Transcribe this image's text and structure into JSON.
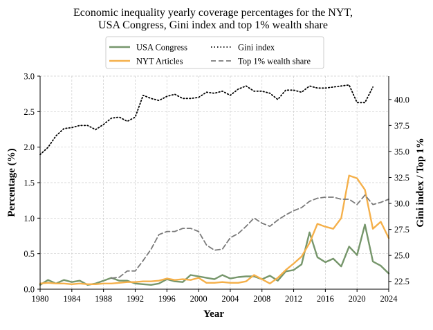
{
  "chart_data": {
    "type": "line",
    "title_lines": [
      "Economic inequality yearly coverage percentages for the NYT,",
      "USA Congress, Gini index and top 1% wealth share"
    ],
    "xlabel": "Year",
    "ylabel_left": "Percentage (%)",
    "ylabel_right": "Gini index / Top 1%",
    "xlim": [
      1980,
      2024
    ],
    "ylim_left": [
      0,
      3.0
    ],
    "ylim_right": [
      21.75,
      42.25
    ],
    "x_ticks": [
      1980,
      1984,
      1988,
      1992,
      1996,
      2000,
      2004,
      2008,
      2012,
      2016,
      2020,
      2024
    ],
    "y_left_ticks": [
      "0.0",
      "0.5",
      "1.0",
      "1.5",
      "2.0",
      "2.5",
      "3.0"
    ],
    "y_right_ticks": [
      "22.5",
      "25.0",
      "27.5",
      "30.0",
      "32.5",
      "35.0",
      "37.5",
      "40.0"
    ],
    "grid": true,
    "legend_position": "top-center",
    "legend_entries": [
      {
        "label": "USA Congress",
        "series": "congress"
      },
      {
        "label": "NYT Articles",
        "series": "nyt"
      },
      {
        "label": "Gini index",
        "series": "gini"
      },
      {
        "label": "Top 1% wealth share",
        "series": "top1"
      }
    ],
    "series": [
      {
        "id": "congress",
        "name": "USA Congress",
        "axis": "left",
        "color": "#76966b",
        "style": "solid",
        "width": 2.4,
        "x": [
          1980,
          1981,
          1982,
          1983,
          1984,
          1985,
          1986,
          1987,
          1988,
          1989,
          1990,
          1991,
          1992,
          1993,
          1994,
          1995,
          1996,
          1997,
          1998,
          1999,
          2000,
          2001,
          2002,
          2003,
          2004,
          2005,
          2006,
          2007,
          2008,
          2009,
          2010,
          2011,
          2012,
          2013,
          2014,
          2015,
          2016,
          2017,
          2018,
          2019,
          2020,
          2021,
          2022,
          2023,
          2024
        ],
        "y": [
          0.06,
          0.13,
          0.08,
          0.13,
          0.1,
          0.12,
          0.06,
          0.08,
          0.12,
          0.16,
          0.12,
          0.12,
          0.08,
          0.07,
          0.06,
          0.08,
          0.14,
          0.11,
          0.1,
          0.2,
          0.18,
          0.16,
          0.14,
          0.2,
          0.15,
          0.17,
          0.18,
          0.18,
          0.14,
          0.19,
          0.12,
          0.25,
          0.27,
          0.35,
          0.8,
          0.45,
          0.38,
          0.43,
          0.32,
          0.6,
          0.48,
          0.91,
          0.39,
          0.33,
          0.22
        ]
      },
      {
        "id": "nyt",
        "name": "NYT Articles",
        "axis": "left",
        "color": "#f5b04a",
        "style": "solid",
        "width": 2.4,
        "x": [
          1980,
          1981,
          1982,
          1983,
          1984,
          1985,
          1986,
          1987,
          1988,
          1989,
          1990,
          1991,
          1992,
          1993,
          1994,
          1995,
          1996,
          1997,
          1998,
          1999,
          2000,
          2001,
          2002,
          2003,
          2004,
          2005,
          2006,
          2007,
          2008,
          2009,
          2010,
          2011,
          2012,
          2013,
          2014,
          2015,
          2016,
          2017,
          2018,
          2019,
          2020,
          2021,
          2022,
          2023,
          2024
        ],
        "y": [
          0.08,
          0.09,
          0.08,
          0.08,
          0.07,
          0.08,
          0.07,
          0.07,
          0.08,
          0.08,
          0.09,
          0.1,
          0.1,
          0.11,
          0.11,
          0.12,
          0.15,
          0.13,
          0.14,
          0.13,
          0.16,
          0.09,
          0.09,
          0.1,
          0.09,
          0.09,
          0.11,
          0.2,
          0.14,
          0.08,
          0.16,
          0.27,
          0.36,
          0.46,
          0.65,
          0.92,
          0.88,
          0.85,
          1.0,
          1.6,
          1.56,
          1.4,
          0.85,
          0.95,
          0.72
        ]
      },
      {
        "id": "gini",
        "name": "Gini index",
        "axis": "right",
        "color": "#000000",
        "style": "dotted",
        "width": 1.8,
        "x": [
          1980,
          1981,
          1982,
          1983,
          1984,
          1985,
          1986,
          1987,
          1988,
          1989,
          1990,
          1991,
          1992,
          1993,
          1994,
          1995,
          1996,
          1997,
          1998,
          1999,
          2000,
          2001,
          2002,
          2003,
          2004,
          2005,
          2006,
          2007,
          2008,
          2009,
          2010,
          2011,
          2012,
          2013,
          2014,
          2015,
          2016,
          2017,
          2018,
          2019,
          2020,
          2021,
          2022
        ],
        "y": [
          34.7,
          35.4,
          36.5,
          37.2,
          37.3,
          37.5,
          37.5,
          37.1,
          37.6,
          38.2,
          38.3,
          37.9,
          38.3,
          40.4,
          40.1,
          39.9,
          40.3,
          40.5,
          40.1,
          40.1,
          40.2,
          40.7,
          40.6,
          40.8,
          40.4,
          41.0,
          41.3,
          40.8,
          40.8,
          40.6,
          40.0,
          40.9,
          40.9,
          40.7,
          41.3,
          41.1,
          41.1,
          41.2,
          41.3,
          41.4,
          39.7,
          39.7,
          41.2
        ]
      },
      {
        "id": "top1",
        "name": "Top 1% wealth share",
        "axis": "right",
        "color": "#7a7a7a",
        "style": "dashed",
        "width": 1.8,
        "x": [
          1989,
          1990,
          1991,
          1992,
          1993,
          1994,
          1995,
          1996,
          1997,
          1998,
          1999,
          2000,
          2001,
          2002,
          2003,
          2004,
          2005,
          2006,
          2007,
          2008,
          2009,
          2010,
          2011,
          2012,
          2013,
          2014,
          2015,
          2016,
          2017,
          2018,
          2019,
          2020,
          2021,
          2022,
          2023,
          2024
        ],
        "y": [
          22.8,
          22.9,
          23.5,
          23.5,
          24.5,
          25.6,
          27.0,
          27.3,
          27.3,
          27.6,
          27.6,
          27.3,
          26.0,
          25.5,
          25.6,
          26.7,
          27.1,
          27.8,
          28.6,
          28.1,
          27.8,
          28.4,
          28.9,
          29.3,
          29.6,
          30.2,
          30.5,
          30.6,
          30.6,
          30.4,
          30.4,
          29.9,
          30.8,
          29.9,
          30.1,
          30.4
        ]
      }
    ]
  }
}
